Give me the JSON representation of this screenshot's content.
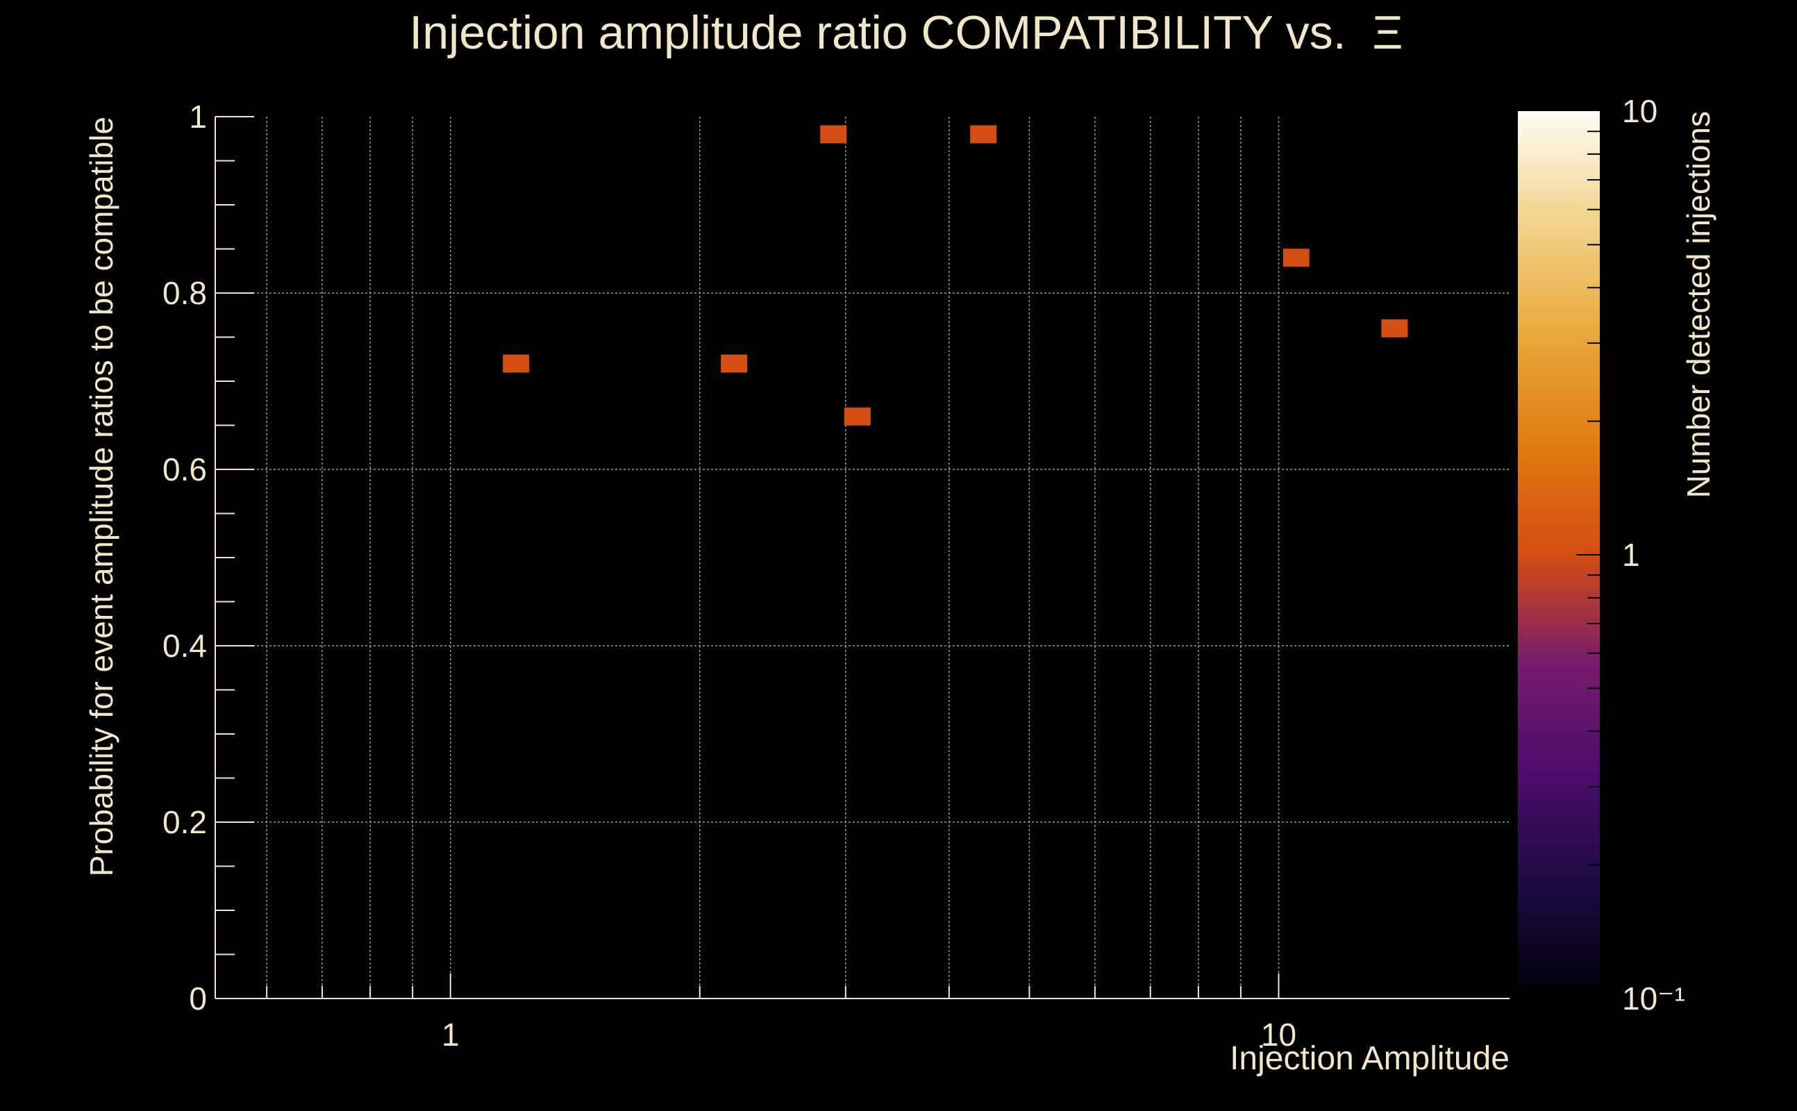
{
  "chart_data": {
    "type": "heatmap",
    "title": "Injection amplitude ratio COMPATIBILITY vs.  Ξ",
    "xlabel": "Injection Amplitude",
    "ylabel": "Probability for event amplitude ratios to be compatible",
    "zlabel": "Number detected injections",
    "x_scale": "log",
    "xlim": [
      0.52,
      19.0
    ],
    "ylim": [
      0,
      1
    ],
    "z_scale": "log",
    "zlim": [
      0.1,
      10
    ],
    "x_ticks": [
      {
        "value": 1,
        "label": "1"
      },
      {
        "value": 10,
        "label": "10"
      }
    ],
    "y_ticks": [
      {
        "value": 0,
        "label": "0"
      },
      {
        "value": 0.2,
        "label": "0.2"
      },
      {
        "value": 0.4,
        "label": "0.4"
      },
      {
        "value": 0.6,
        "label": "0.6"
      },
      {
        "value": 0.8,
        "label": "0.8"
      },
      {
        "value": 1,
        "label": "1"
      }
    ],
    "z_ticks": [
      {
        "value": 0.1,
        "label": "10⁻¹"
      },
      {
        "value": 1,
        "label": "1"
      },
      {
        "value": 10,
        "label": "10"
      }
    ],
    "grid": true,
    "colormap": "inferno",
    "background_color": "#000000",
    "text_color": "#f2e6c8",
    "cells": [
      {
        "x": 1.2,
        "y": 0.72,
        "count": 1
      },
      {
        "x": 2.2,
        "y": 0.72,
        "count": 1
      },
      {
        "x": 2.9,
        "y": 0.98,
        "count": 1
      },
      {
        "x": 3.1,
        "y": 0.66,
        "count": 1
      },
      {
        "x": 4.4,
        "y": 0.98,
        "count": 1
      },
      {
        "x": 10.5,
        "y": 0.84,
        "count": 1
      },
      {
        "x": 13.8,
        "y": 0.76,
        "count": 1
      }
    ]
  }
}
